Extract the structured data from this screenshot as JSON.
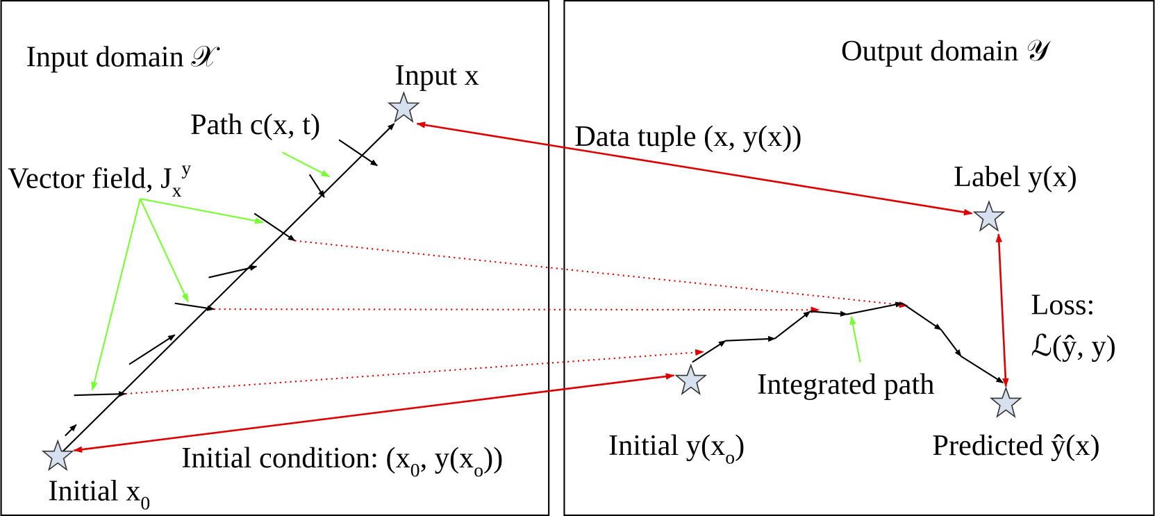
{
  "input_domain": "Input domain 𝒳",
  "output_domain": "Output domain 𝒴",
  "input_x": "Input x",
  "path": "Path c(x, t)",
  "vector_field": {
    "text": "Vector field, J",
    "sub": "x",
    "sup": "y"
  },
  "data_tuple": "Data tuple (x, y(x))",
  "label": "Label y(x)",
  "loss": {
    "line1": "Loss:",
    "line2": "ℒ(ŷ, y)"
  },
  "integrated_path": "Integrated path",
  "initial_y": {
    "text": "Initial y(x",
    "sub": "o",
    "end": ")"
  },
  "predicted": "Predicted ŷ(x)",
  "initial_condition": {
    "text": "Initial condition: (x",
    "sub1": "0",
    "mid": ", y(x",
    "sub2": "o",
    "end": "))"
  },
  "initial_x": {
    "text": "Initial x",
    "sub": "0"
  }
}
